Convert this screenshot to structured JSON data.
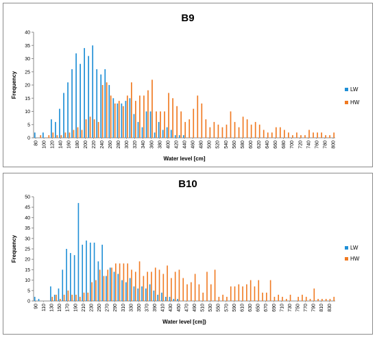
{
  "chart_data": [
    {
      "type": "bar",
      "title": "B9",
      "xlabel": "Water level [cm]",
      "ylabel": "Frequency",
      "ylim": [
        0,
        40
      ],
      "yticks": [
        0,
        5,
        10,
        15,
        20,
        25,
        30,
        35,
        40
      ],
      "x_range": [
        80,
        800
      ],
      "x_step": 10,
      "xtick_labels": [
        "80",
        "100",
        "120",
        "140",
        "160",
        "180",
        "200",
        "220",
        "240",
        "260",
        "280",
        "300",
        "320",
        "340",
        "360",
        "380",
        "400",
        "420",
        "440",
        "460",
        "480",
        "500",
        "520",
        "540",
        "560",
        "580",
        "600",
        "620",
        "640",
        "660",
        "680",
        "700",
        "720",
        "740",
        "760",
        "780",
        "800"
      ],
      "legend_position": "right",
      "series": [
        {
          "name": "LW",
          "color": "#1f8fd6",
          "values": [
            2,
            0,
            2,
            0,
            7,
            6,
            11,
            17,
            21,
            26,
            32,
            28,
            34,
            31,
            35,
            26,
            24,
            26,
            20,
            15,
            13,
            13,
            14,
            15,
            9,
            6,
            4,
            10,
            10,
            2,
            6,
            3,
            4,
            3,
            1,
            1,
            1,
            0,
            0,
            0,
            0,
            0,
            0,
            0,
            0,
            0,
            0,
            0,
            0,
            0,
            0,
            0,
            0,
            0,
            0,
            0,
            0,
            0,
            0,
            0,
            0,
            0,
            0,
            0,
            0,
            0,
            0,
            0,
            0,
            0,
            0,
            0,
            0
          ]
        },
        {
          "name": "HW",
          "color": "#f07a22",
          "values": [
            0,
            1,
            0,
            1,
            2,
            1,
            1,
            2,
            2,
            3,
            4,
            3,
            7,
            8,
            7,
            6,
            20,
            21,
            16,
            13,
            14,
            12,
            16,
            21,
            14,
            16,
            16,
            18,
            22,
            10,
            10,
            10,
            17,
            15,
            12,
            10,
            6,
            7,
            11,
            16,
            13,
            7,
            4,
            6,
            5,
            4,
            5,
            10,
            6,
            4,
            8,
            7,
            5,
            6,
            5,
            3,
            2,
            2,
            4,
            4,
            3,
            2,
            1,
            2,
            1,
            1,
            3,
            2,
            2,
            2,
            1,
            1,
            2,
            1
          ]
        }
      ]
    },
    {
      "type": "bar",
      "title": "B10",
      "xlabel": "Water level [cm])",
      "ylabel": "Frequency",
      "ylim": [
        0,
        50
      ],
      "yticks": [
        0,
        5,
        10,
        15,
        20,
        25,
        30,
        35,
        40,
        45,
        50
      ],
      "x_range": [
        90,
        840
      ],
      "x_step": 10,
      "xtick_labels": [
        "90",
        "110",
        "130",
        "150",
        "170",
        "190",
        "210",
        "230",
        "250",
        "270",
        "290",
        "310",
        "330",
        "350",
        "370",
        "390",
        "410",
        "430",
        "450",
        "470",
        "490",
        "510",
        "530",
        "550",
        "570",
        "590",
        "610",
        "630",
        "650",
        "670",
        "690",
        "710",
        "730",
        "750",
        "770",
        "790",
        "810",
        "830"
      ],
      "legend_position": "right",
      "series": [
        {
          "name": "LW",
          "color": "#1f8fd6",
          "values": [
            2,
            1,
            0,
            0,
            7,
            3,
            6,
            15,
            25,
            23,
            22,
            47,
            27,
            29,
            28,
            28,
            19,
            27,
            12,
            16,
            14,
            13,
            10,
            9,
            11,
            7,
            6,
            7,
            6,
            8,
            5,
            3,
            4,
            2,
            2,
            1,
            1,
            0,
            0,
            0,
            0,
            0,
            0,
            0,
            0,
            0,
            0,
            0,
            0,
            0,
            0,
            0,
            0,
            0,
            0,
            0,
            0,
            0,
            0,
            0,
            0,
            0,
            0,
            0,
            0,
            0,
            0,
            0,
            0,
            0,
            0,
            0,
            0,
            0,
            0,
            0
          ]
        },
        {
          "name": "HW",
          "color": "#f07a22",
          "values": [
            0,
            0,
            0,
            0,
            2,
            3,
            1,
            3,
            5,
            3,
            3,
            2,
            4,
            4,
            9,
            10,
            15,
            12,
            15,
            16,
            18,
            18,
            18,
            18,
            15,
            14,
            19,
            12,
            14,
            14,
            16,
            15,
            13,
            17,
            11,
            14,
            15,
            11,
            8,
            9,
            13,
            8,
            4,
            14,
            8,
            15,
            2,
            3,
            2,
            7,
            7,
            8,
            7,
            8,
            10,
            7,
            10,
            4,
            4,
            10,
            2,
            3,
            2,
            1,
            3,
            0,
            2,
            3,
            2,
            1,
            6,
            1,
            1,
            1,
            1,
            2,
            1,
            1,
            5,
            2
          ]
        }
      ]
    }
  ]
}
